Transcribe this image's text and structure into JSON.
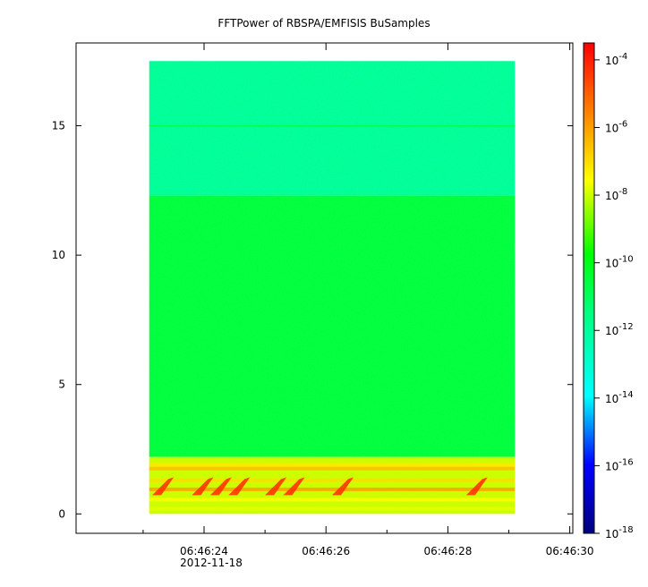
{
  "chart_data": {
    "type": "heatmap",
    "title": "FFTPower of RBSPA/EMFISIS  BuSamples",
    "xlabel": "",
    "ylabel": "",
    "x_ticks": [
      {
        "label": "06:46:24",
        "t": 24,
        "sub": "2012-11-18"
      },
      {
        "label": "06:46:26",
        "t": 26,
        "sub": ""
      },
      {
        "label": "06:46:28",
        "t": 28,
        "sub": ""
      },
      {
        "label": "06:46:30",
        "t": 30,
        "sub": ""
      }
    ],
    "x_minor": [
      23,
      25,
      27,
      29
    ],
    "xlim": [
      21.9,
      30.05
    ],
    "data_time_range": [
      23.1,
      29.1
    ],
    "yticks": [
      0,
      5,
      10,
      15
    ],
    "ylim": [
      -0.75,
      18.2
    ],
    "data_freq_range": [
      0,
      17.5
    ],
    "colorbar": {
      "scale": "log",
      "range": [
        -18,
        -3.5
      ],
      "ticks": [
        {
          "base": "10",
          "exp": "-4",
          "value": -4
        },
        {
          "base": "10",
          "exp": "-6",
          "value": -6
        },
        {
          "base": "10",
          "exp": "-8",
          "value": -8
        },
        {
          "base": "10",
          "exp": "-10",
          "value": -10
        },
        {
          "base": "10",
          "exp": "-12",
          "value": -12
        },
        {
          "base": "10",
          "exp": "-14",
          "value": -14
        },
        {
          "base": "10",
          "exp": "-16",
          "value": -16
        },
        {
          "base": "10",
          "exp": "-18",
          "value": -18
        }
      ],
      "colormap": "rainbow (blue-cyan-green-yellow-red)"
    },
    "regions": [
      {
        "freq": [
          12.3,
          17.5
        ],
        "log_power": -12.0
      },
      {
        "freq": [
          2.2,
          12.3
        ],
        "log_power": -10.6
      },
      {
        "freq": [
          0,
          2.2
        ],
        "log_power": -8.0
      }
    ],
    "grid": false,
    "legend": "none"
  }
}
